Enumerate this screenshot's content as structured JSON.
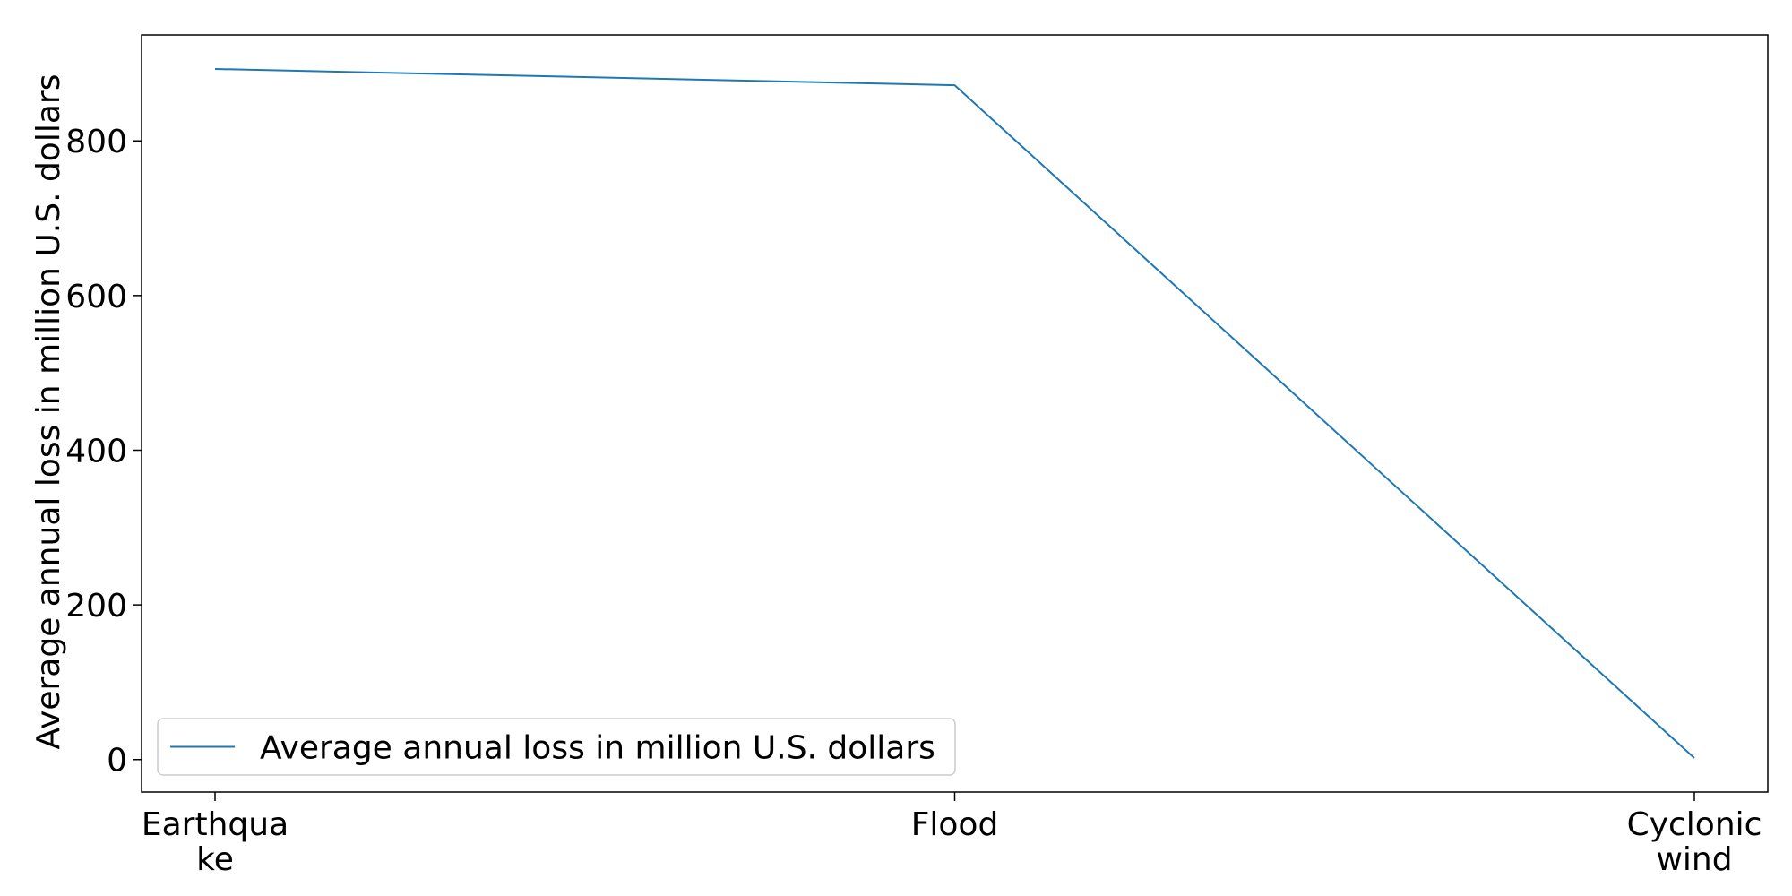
{
  "chart_data": {
    "type": "line",
    "categories": [
      "Earthquake",
      "Flood",
      "Cyclonic wind"
    ],
    "category_tick_lines": [
      [
        "Earthqua",
        "ke"
      ],
      [
        "Flood"
      ],
      [
        "Cyclonic",
        "wind"
      ]
    ],
    "series": [
      {
        "name": "Average annual loss in million U.S. dollars",
        "values": [
          893,
          872,
          2
        ],
        "color": "#1f77b4"
      }
    ],
    "ylabel": "Average annual loss in million U.S. dollars",
    "xlabel": "",
    "title": "",
    "ylim": [
      -42,
      937
    ],
    "yticks": [
      0,
      200,
      400,
      600,
      800
    ],
    "grid": false,
    "legend_position": "lower-left"
  }
}
